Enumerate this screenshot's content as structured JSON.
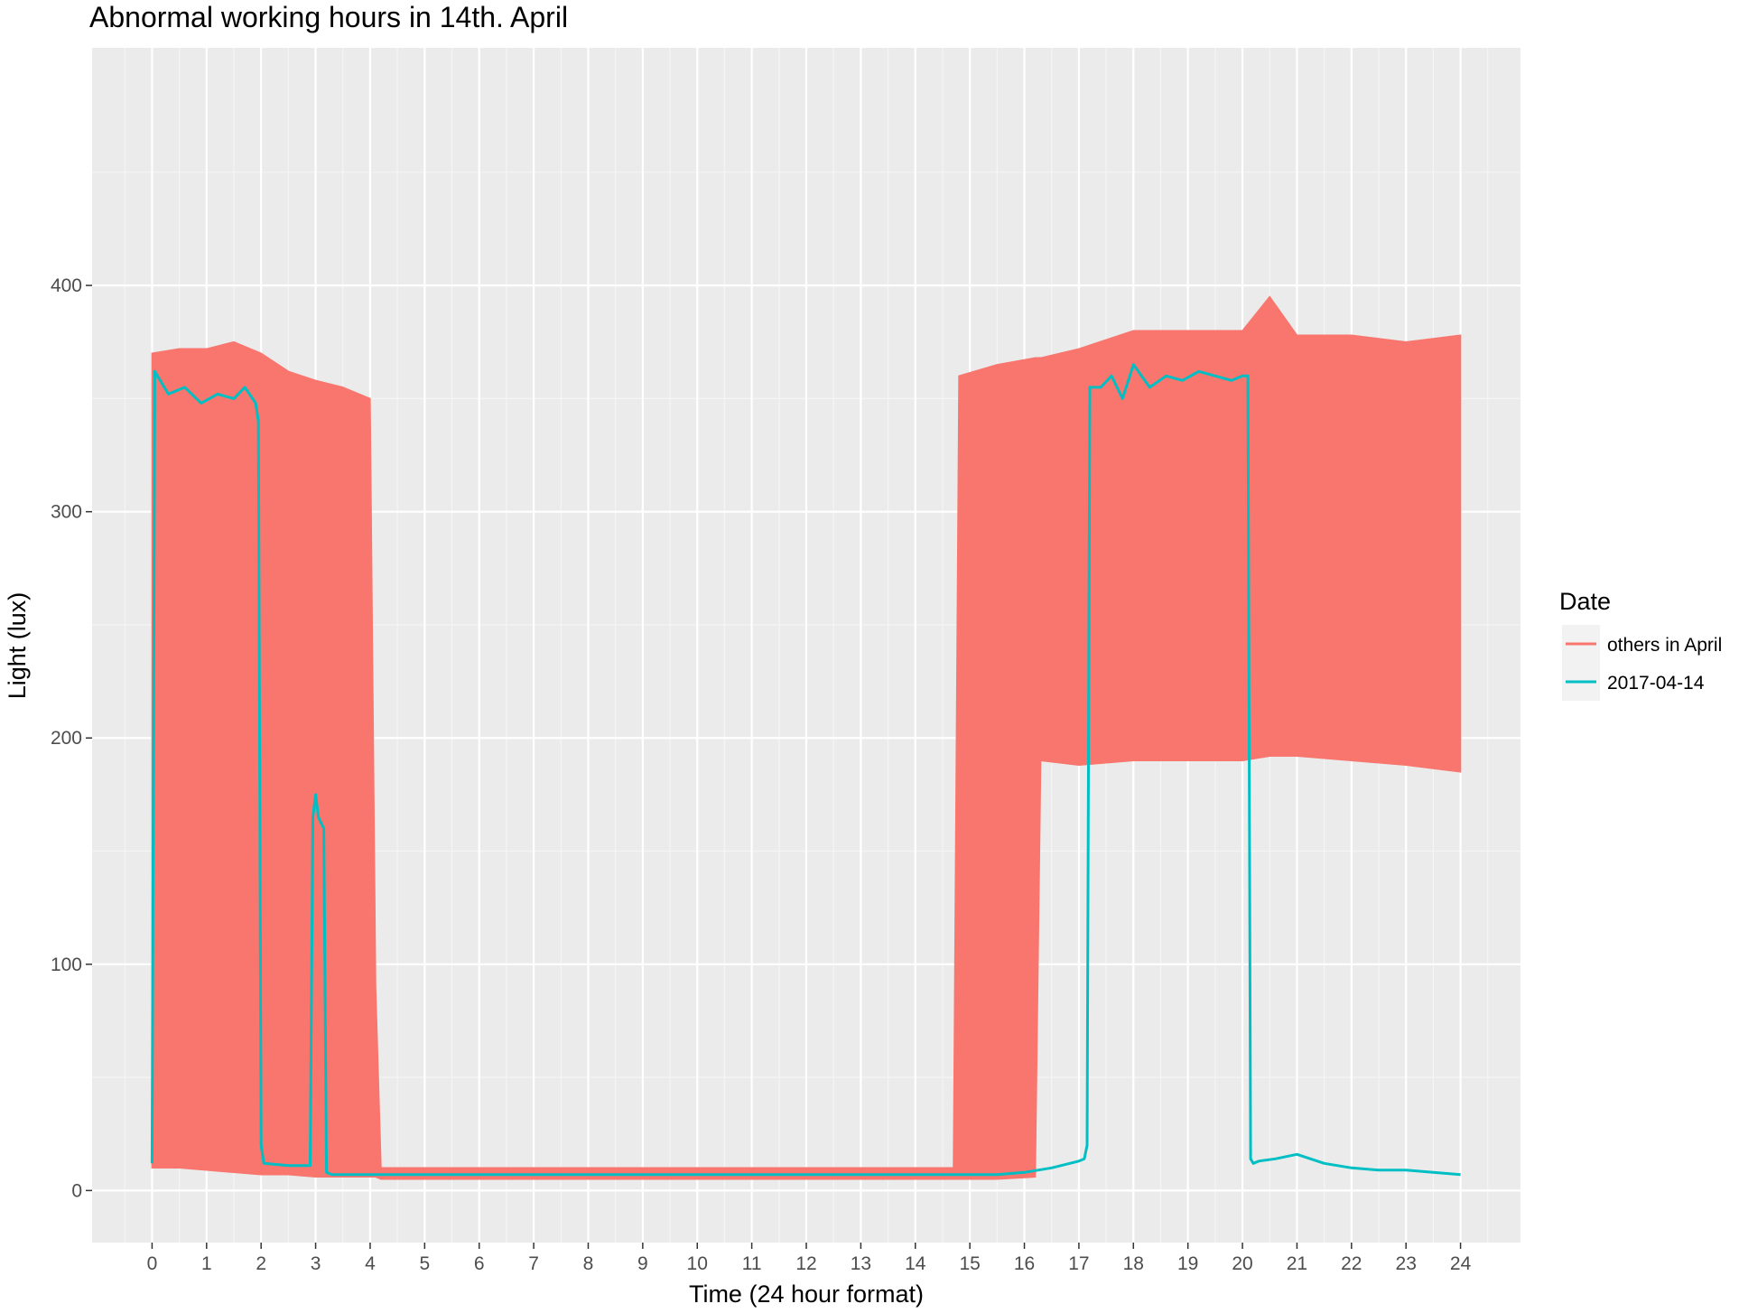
{
  "chart_data": {
    "type": "line",
    "title": "Abnormal working hours in 14th. April",
    "xlabel": "Time (24 hour format)",
    "ylabel": "Light (lux)",
    "xlim": [
      -1.1,
      25.1
    ],
    "ylim": [
      -23,
      505
    ],
    "x_ticks": [
      0,
      1,
      2,
      3,
      4,
      5,
      6,
      7,
      8,
      9,
      10,
      11,
      12,
      13,
      14,
      15,
      16,
      17,
      18,
      19,
      20,
      21,
      22,
      23,
      24
    ],
    "x_tick_labels": [
      "0",
      "1",
      "2",
      "3",
      "4",
      "5",
      "6",
      "7",
      "8",
      "9",
      "10",
      "11",
      "12",
      "13",
      "14",
      "15",
      "16",
      "17",
      "18",
      "19",
      "20",
      "21",
      "22",
      "23",
      "24"
    ],
    "y_ticks": [
      0,
      100,
      200,
      300,
      400
    ],
    "y_tick_labels": [
      "0",
      "100",
      "200",
      "300",
      "400"
    ],
    "grid": true,
    "legend": {
      "title": "Date",
      "placement": "right",
      "entries": [
        {
          "label": "others in April",
          "color": "#F8766D"
        },
        {
          "label": "2017-04-14",
          "color": "#00BFC4"
        }
      ]
    },
    "series": [
      {
        "name": "others in April",
        "color": "#F8766D",
        "render": "range-band",
        "x": [
          0.0,
          0.5,
          1.0,
          1.5,
          2.0,
          2.5,
          3.0,
          3.5,
          4.0,
          4.1,
          4.2,
          5,
          6,
          7,
          8,
          9,
          10,
          11,
          12,
          13,
          14,
          14.7,
          14.8,
          15.5,
          16.2,
          16.3,
          17,
          18,
          19,
          20,
          20.5,
          21,
          22,
          23,
          24
        ],
        "low": [
          10,
          10,
          9,
          8,
          7,
          7,
          6,
          6,
          6,
          6,
          5,
          5,
          5,
          5,
          5,
          5,
          5,
          5,
          5,
          5,
          5,
          5,
          5,
          5,
          6,
          190,
          188,
          190,
          190,
          190,
          192,
          192,
          190,
          188,
          185
        ],
        "high": [
          370,
          372,
          372,
          375,
          370,
          362,
          358,
          355,
          350,
          90,
          10,
          10,
          10,
          10,
          10,
          10,
          10,
          10,
          10,
          10,
          10,
          10,
          360,
          365,
          368,
          368,
          372,
          380,
          380,
          380,
          395,
          378,
          378,
          375,
          378
        ]
      },
      {
        "name": "2017-04-14",
        "color": "#00BFC4",
        "render": "line",
        "x": [
          0.0,
          0.05,
          0.3,
          0.6,
          0.9,
          1.2,
          1.5,
          1.7,
          1.9,
          1.95,
          2.0,
          2.05,
          2.5,
          2.9,
          2.95,
          3.0,
          3.05,
          3.15,
          3.2,
          3.3,
          4,
          5,
          6,
          7,
          8,
          9,
          10,
          11,
          12,
          13,
          14,
          15,
          15.5,
          16,
          16.5,
          17,
          17.1,
          17.15,
          17.2,
          17.4,
          17.6,
          17.8,
          18.0,
          18.3,
          18.6,
          18.9,
          19.2,
          19.5,
          19.8,
          20.0,
          20.1,
          20.15,
          20.2,
          20.3,
          20.6,
          21.0,
          21.5,
          22,
          22.5,
          23,
          23.5,
          24
        ],
        "y": [
          12,
          362,
          352,
          355,
          348,
          352,
          350,
          355,
          348,
          340,
          20,
          12,
          11,
          11,
          165,
          175,
          165,
          160,
          8,
          7,
          7,
          7,
          7,
          7,
          7,
          7,
          7,
          7,
          7,
          7,
          7,
          7,
          7,
          8,
          10,
          13,
          14,
          20,
          355,
          355,
          360,
          350,
          365,
          355,
          360,
          358,
          362,
          360,
          358,
          360,
          360,
          14,
          12,
          13,
          14,
          16,
          12,
          10,
          9,
          9,
          8,
          7
        ]
      }
    ]
  }
}
